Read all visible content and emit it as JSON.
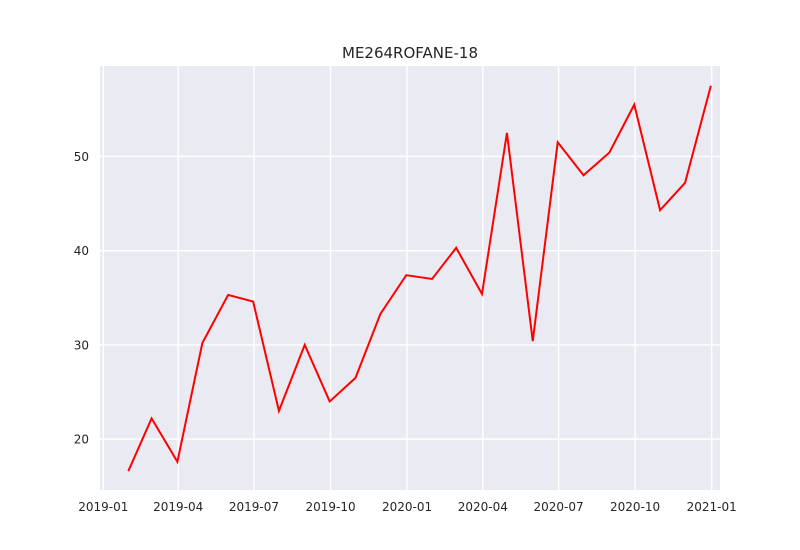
{
  "chart_data": {
    "type": "line",
    "title": "ME264ROFANE-18",
    "xlabel": "",
    "ylabel": "",
    "x_tick_labels": [
      "2019-01",
      "2019-04",
      "2019-07",
      "2019-10",
      "2020-01",
      "2020-04",
      "2020-07",
      "2020-10",
      "2021-01"
    ],
    "y_tick_labels": [
      "20",
      "30",
      "40",
      "50"
    ],
    "y_ticks": [
      20,
      30,
      40,
      50
    ],
    "xlim": [
      "2018-12-28",
      "2021-01-11"
    ],
    "ylim": [
      14.6,
      59.6
    ],
    "grid": true,
    "background_color": "#eaeaf2",
    "grid_color": "#ffffff",
    "series": [
      {
        "color": "#ff0000",
        "points": [
          {
            "x": "2019-01-31",
            "y": 16.6
          },
          {
            "x": "2019-02-28",
            "y": 22.2
          },
          {
            "x": "2019-03-31",
            "y": 17.6
          },
          {
            "x": "2019-04-30",
            "y": 30.2
          },
          {
            "x": "2019-05-31",
            "y": 35.3
          },
          {
            "x": "2019-06-30",
            "y": 34.6
          },
          {
            "x": "2019-07-31",
            "y": 23.0
          },
          {
            "x": "2019-08-31",
            "y": 30.0
          },
          {
            "x": "2019-09-30",
            "y": 24.0
          },
          {
            "x": "2019-10-31",
            "y": 26.5
          },
          {
            "x": "2019-11-30",
            "y": 33.3
          },
          {
            "x": "2019-12-31",
            "y": 37.4
          },
          {
            "x": "2020-01-31",
            "y": 37.0
          },
          {
            "x": "2020-02-29",
            "y": 40.3
          },
          {
            "x": "2020-03-31",
            "y": 35.4
          },
          {
            "x": "2020-04-30",
            "y": 52.5
          },
          {
            "x": "2020-05-31",
            "y": 30.4
          },
          {
            "x": "2020-06-30",
            "y": 51.5
          },
          {
            "x": "2020-07-31",
            "y": 48.0
          },
          {
            "x": "2020-08-31",
            "y": 50.4
          },
          {
            "x": "2020-09-30",
            "y": 55.5
          },
          {
            "x": "2020-10-31",
            "y": 44.3
          },
          {
            "x": "2020-11-30",
            "y": 47.2
          },
          {
            "x": "2020-12-31",
            "y": 57.5
          }
        ]
      }
    ]
  }
}
